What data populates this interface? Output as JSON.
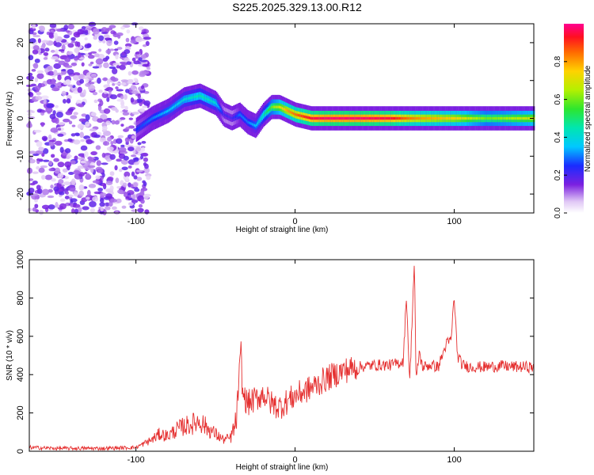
{
  "title": "S225.2025.329.13.00.R12",
  "colors": {
    "snr_line": "#e53030",
    "axis": "#000000"
  },
  "chart_data": [
    {
      "type": "heatmap",
      "name": "spectrogram",
      "xlabel": "Height of straight line (km)",
      "ylabel": "Frequency (Hz)",
      "xlim": [
        -167,
        150
      ],
      "ylim": [
        -25,
        25
      ],
      "x_ticks": [
        -100,
        0,
        100
      ],
      "x_tick_labels": [
        "-100",
        "0",
        "100"
      ],
      "y_ticks": [
        -20,
        -10,
        0,
        10,
        20
      ],
      "y_tick_labels": [
        "-20",
        "-10",
        "0",
        "10",
        "20"
      ],
      "colorbar": {
        "label": "Normalized spectral amplitude",
        "range": [
          0,
          1
        ],
        "ticks": [
          0.0,
          0.2,
          0.4,
          0.6,
          0.8
        ],
        "tick_labels": [
          "0.0",
          "0.2",
          "0.4",
          "0.6",
          "0.8"
        ]
      },
      "ridge": {
        "description": "dominant frequency track",
        "x": [
          -100,
          -90,
          -80,
          -70,
          -60,
          -50,
          -45,
          -40,
          -35,
          -30,
          -25,
          -20,
          -15,
          -10,
          -5,
          0,
          10,
          20,
          40,
          60,
          70,
          80,
          100,
          120,
          150
        ],
        "y": [
          -3,
          0,
          2,
          5,
          6,
          4,
          1,
          0,
          1,
          -1,
          -2,
          1,
          3,
          3,
          2,
          1,
          0,
          0,
          0,
          0,
          0,
          0,
          0,
          0,
          0
        ],
        "amplitude": [
          0.25,
          0.3,
          0.35,
          0.4,
          0.45,
          0.4,
          0.2,
          0.2,
          0.3,
          0.3,
          0.35,
          0.45,
          0.6,
          0.7,
          0.8,
          0.85,
          0.95,
          0.98,
          0.98,
          0.95,
          0.85,
          0.8,
          0.75,
          0.6,
          0.7
        ]
      },
      "noise_region": {
        "x_range": [
          -167,
          -100
        ],
        "amplitude": 0.12
      }
    },
    {
      "type": "line",
      "name": "snr",
      "xlabel": "Height of straight line (km)",
      "ylabel": "SNR (10 * v/v)",
      "xlim": [
        -167,
        150
      ],
      "ylim": [
        0,
        1000
      ],
      "x_ticks": [
        -100,
        0,
        100
      ],
      "x_tick_labels": [
        "-100",
        "0",
        "100"
      ],
      "y_ticks": [
        0,
        200,
        400,
        600,
        800,
        1000
      ],
      "y_tick_labels": [
        "0",
        "200",
        "400",
        "600",
        "800",
        "1000"
      ],
      "series": [
        {
          "name": "SNR",
          "x": [
            -167,
            -150,
            -120,
            -100,
            -95,
            -90,
            -85,
            -80,
            -75,
            -70,
            -65,
            -60,
            -55,
            -50,
            -45,
            -40,
            -37,
            -35,
            -34,
            -33,
            -30,
            -25,
            -20,
            -15,
            -10,
            -5,
            0,
            10,
            20,
            30,
            40,
            50,
            60,
            65,
            68,
            70,
            72,
            74,
            75,
            76,
            78,
            80,
            85,
            90,
            95,
            98,
            100,
            102,
            105,
            110,
            120,
            130,
            140,
            150
          ],
          "y": [
            20,
            15,
            15,
            20,
            40,
            60,
            90,
            80,
            110,
            130,
            140,
            160,
            120,
            90,
            60,
            70,
            150,
            400,
            520,
            300,
            250,
            270,
            300,
            250,
            230,
            260,
            290,
            330,
            380,
            420,
            440,
            450,
            450,
            460,
            470,
            820,
            350,
            800,
            1000,
            350,
            520,
            440,
            450,
            440,
            560,
            580,
            810,
            500,
            450,
            440,
            440,
            445,
            440,
            440
          ]
        }
      ]
    }
  ]
}
